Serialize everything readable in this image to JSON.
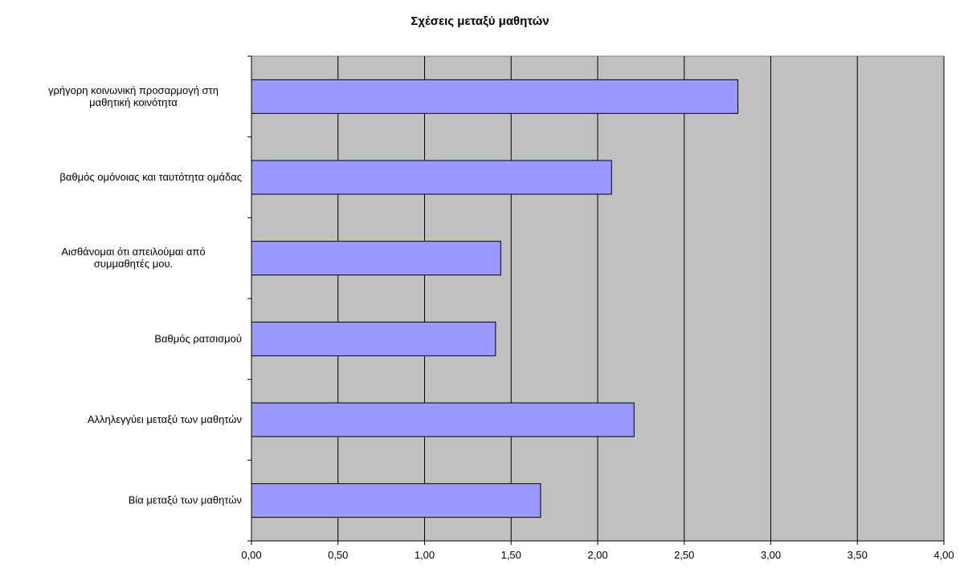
{
  "chart_data": {
    "type": "bar",
    "orientation": "horizontal",
    "title": "Σχέσεις μεταξύ μαθητών",
    "xlabel": "",
    "ylabel": "",
    "categories": [
      [
        "γρήγορη κοινωνική  προσαρμογή στη",
        "μαθητική κοινότητα"
      ],
      [
        "βαθμός ομόνοιας και ταυτότητα ομάδας"
      ],
      [
        "Αισθάνομαι ότι απειλούμαι από",
        "συμμαθητές μου."
      ],
      [
        "Βαθμός ρατσισμού"
      ],
      [
        "Αλληλεγγύει μεταξύ των  μαθητών"
      ],
      [
        "Βία μεταξύ των  μαθητών"
      ]
    ],
    "values": [
      2.81,
      2.08,
      1.44,
      1.41,
      2.21,
      1.67
    ],
    "xlim": [
      0,
      4
    ],
    "ticks": [
      "0,00",
      "0,50",
      "1,00",
      "1,50",
      "2,00",
      "2,50",
      "3,00",
      "3,50",
      "4,00"
    ],
    "grid": true,
    "legend": "none",
    "colors": {
      "bar_fill": "#9999ff",
      "bar_stroke": "#000000",
      "plot_background": "#c0c0c0",
      "gridline": "#000000"
    }
  }
}
